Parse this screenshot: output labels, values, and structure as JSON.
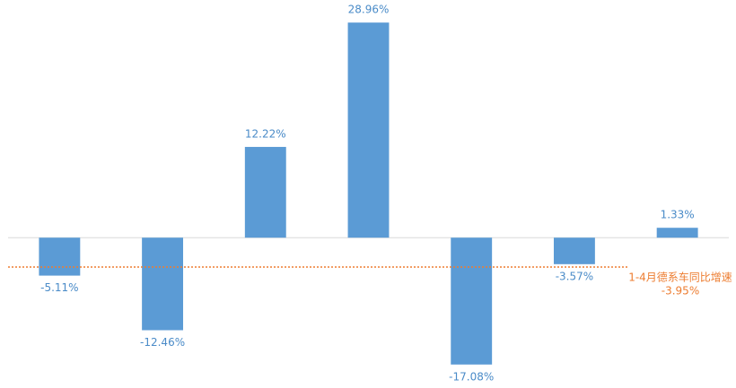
{
  "chart_data": {
    "type": "bar",
    "categories": [
      null,
      null,
      null,
      null,
      null,
      null,
      null
    ],
    "values": [
      -5.11,
      -12.46,
      12.22,
      28.96,
      -17.08,
      -3.57,
      1.33
    ],
    "value_labels": [
      "-5.11%",
      "-12.46%",
      "12.22%",
      "28.96%",
      "-17.08%",
      "-3.57%",
      "1.33%"
    ],
    "color": "#5b9bd5",
    "ylim": [
      -20,
      32
    ],
    "reference_line": {
      "value": -3.95,
      "label": "-3.95%",
      "text": "1-4月德系车同比增速",
      "color": "#ed7d31"
    }
  }
}
